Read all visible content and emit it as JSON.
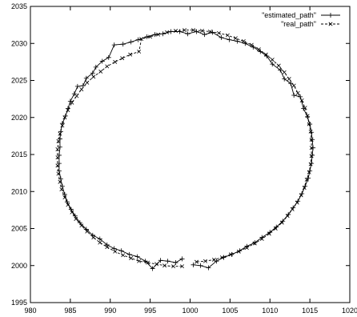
{
  "chart_data": {
    "type": "line",
    "title": "",
    "xlabel": "",
    "ylabel": "",
    "xlim": [
      980,
      1020
    ],
    "ylim": [
      1995,
      2035
    ],
    "grid": false,
    "legend_position": "top-right",
    "x_ticks": [
      980,
      985,
      990,
      995,
      1000,
      1005,
      1010,
      1015,
      1020
    ],
    "y_ticks": [
      1995,
      2000,
      2005,
      2010,
      2015,
      2020,
      2025,
      2030,
      2035
    ],
    "x_tick_labels": [
      "980",
      "985",
      "990",
      "995",
      "1000",
      "1005",
      "1010",
      "1015",
      "1020"
    ],
    "y_tick_labels": [
      "1995",
      "2000",
      "2005",
      "2010",
      "2015",
      "2020",
      "2025",
      "2030",
      "2035"
    ],
    "series": [
      {
        "name": "\"estimated_path\"",
        "style": "solid",
        "marker": "+",
        "color": "#000000",
        "points": [
          [
            999.0,
            2000.9
          ],
          [
            998.2,
            2000.4
          ],
          [
            997.2,
            2000.6
          ],
          [
            996.3,
            2000.7
          ],
          [
            995.3,
            1999.6
          ],
          [
            994.4,
            2000.6
          ],
          [
            993.4,
            2001.2
          ],
          [
            992.4,
            2001.5
          ],
          [
            991.4,
            2002.0
          ],
          [
            990.5,
            2002.3
          ],
          [
            989.6,
            2002.8
          ],
          [
            988.7,
            2003.6
          ],
          [
            987.8,
            2004.1
          ],
          [
            987.0,
            2004.9
          ],
          [
            986.2,
            2005.8
          ],
          [
            985.6,
            2006.7
          ],
          [
            985.1,
            2007.6
          ],
          [
            984.6,
            2008.6
          ],
          [
            984.3,
            2009.6
          ],
          [
            984.0,
            2010.7
          ],
          [
            983.8,
            2011.7
          ],
          [
            983.6,
            2012.8
          ],
          [
            983.6,
            2013.8
          ],
          [
            983.6,
            2014.9
          ],
          [
            983.7,
            2016.0
          ],
          [
            983.7,
            2017.1
          ],
          [
            983.8,
            2018.1
          ],
          [
            984.0,
            2019.2
          ],
          [
            984.4,
            2020.2
          ],
          [
            984.7,
            2021.2
          ],
          [
            985.0,
            2022.2
          ],
          [
            985.5,
            2023.2
          ],
          [
            985.9,
            2024.2
          ],
          [
            986.6,
            2024.3
          ],
          [
            987.0,
            2025.3
          ],
          [
            987.8,
            2026.0
          ],
          [
            988.2,
            2026.8
          ],
          [
            989.0,
            2027.6
          ],
          [
            989.8,
            2028.1
          ],
          [
            990.5,
            2029.8
          ],
          [
            991.6,
            2029.9
          ],
          [
            992.6,
            2030.2
          ],
          [
            993.5,
            2030.5
          ],
          [
            994.6,
            2030.9
          ],
          [
            995.6,
            2031.2
          ],
          [
            996.6,
            2031.3
          ],
          [
            997.6,
            2031.6
          ],
          [
            998.7,
            2031.6
          ],
          [
            999.7,
            2031.3
          ],
          [
            1000.8,
            2031.6
          ],
          [
            1001.8,
            2031.2
          ],
          [
            1002.8,
            2031.5
          ],
          [
            1003.9,
            2030.8
          ],
          [
            1004.9,
            2030.5
          ],
          [
            1005.9,
            2030.3
          ],
          [
            1006.9,
            2030.0
          ],
          [
            1007.9,
            2029.5
          ],
          [
            1008.8,
            2028.9
          ],
          [
            1009.6,
            2028.3
          ],
          [
            1010.3,
            2027.2
          ],
          [
            1011.3,
            2026.4
          ],
          [
            1011.8,
            2025.2
          ],
          [
            1012.6,
            2024.6
          ],
          [
            1013.0,
            2023.0
          ],
          [
            1013.8,
            2022.8
          ],
          [
            1014.2,
            2021.2
          ],
          [
            1014.7,
            2020.1
          ],
          [
            1015.0,
            2019.1
          ],
          [
            1015.2,
            2018.0
          ],
          [
            1015.3,
            2017.0
          ],
          [
            1015.4,
            2015.9
          ],
          [
            1015.3,
            2014.9
          ],
          [
            1015.2,
            2013.8
          ],
          [
            1015.0,
            2012.8
          ],
          [
            1014.8,
            2011.8
          ],
          [
            1014.4,
            2010.7
          ],
          [
            1014.0,
            2009.7
          ],
          [
            1013.5,
            2008.7
          ],
          [
            1012.9,
            2007.8
          ],
          [
            1012.3,
            2006.9
          ],
          [
            1011.6,
            2006.0
          ],
          [
            1010.8,
            2005.2
          ],
          [
            1010.0,
            2004.5
          ],
          [
            1009.0,
            2003.8
          ],
          [
            1008.1,
            2003.1
          ],
          [
            1007.1,
            2002.6
          ],
          [
            1006.2,
            2002.0
          ],
          [
            1005.2,
            2001.5
          ],
          [
            1004.2,
            2001.1
          ],
          [
            1003.3,
            2000.6
          ],
          [
            1002.3,
            1999.7
          ],
          [
            1001.3,
            2000.0
          ],
          [
            1000.4,
            2000.1
          ]
        ]
      },
      {
        "name": "\"real_path\"",
        "style": "dashed",
        "marker": "x",
        "color": "#000000",
        "points": [
          [
            999.0,
            1999.9
          ],
          [
            997.9,
            1999.9
          ],
          [
            996.8,
            2000.0
          ],
          [
            995.8,
            2000.2
          ],
          [
            994.7,
            2000.4
          ],
          [
            993.6,
            2000.6
          ],
          [
            992.6,
            2001.0
          ],
          [
            991.6,
            2001.4
          ],
          [
            990.6,
            2001.9
          ],
          [
            989.6,
            2002.5
          ],
          [
            988.7,
            2003.1
          ],
          [
            987.9,
            2003.8
          ],
          [
            987.1,
            2004.6
          ],
          [
            986.4,
            2005.4
          ],
          [
            985.7,
            2006.3
          ],
          [
            985.2,
            2007.2
          ],
          [
            984.7,
            2008.2
          ],
          [
            984.3,
            2009.2
          ],
          [
            983.9,
            2010.3
          ],
          [
            983.7,
            2011.3
          ],
          [
            983.5,
            2012.4
          ],
          [
            983.4,
            2013.5
          ],
          [
            983.4,
            2014.6
          ],
          [
            983.4,
            2015.7
          ],
          [
            983.5,
            2016.8
          ],
          [
            983.7,
            2017.8
          ],
          [
            984.0,
            2018.9
          ],
          [
            984.3,
            2020.0
          ],
          [
            984.7,
            2021.0
          ],
          [
            985.2,
            2022.0
          ],
          [
            985.8,
            2022.9
          ],
          [
            986.4,
            2023.8
          ],
          [
            987.1,
            2024.7
          ],
          [
            987.9,
            2025.5
          ],
          [
            988.8,
            2026.2
          ],
          [
            989.6,
            2026.9
          ],
          [
            990.6,
            2027.5
          ],
          [
            991.5,
            2028.0
          ],
          [
            992.5,
            2028.5
          ],
          [
            993.6,
            2028.9
          ],
          [
            993.9,
            2030.6
          ],
          [
            995.0,
            2030.9
          ],
          [
            996.0,
            2031.2
          ],
          [
            997.1,
            2031.5
          ],
          [
            998.2,
            2031.7
          ],
          [
            999.3,
            2031.8
          ],
          [
            1000.4,
            2031.8
          ],
          [
            1001.5,
            2031.7
          ],
          [
            1002.5,
            2031.6
          ],
          [
            1003.6,
            2031.4
          ],
          [
            1004.7,
            2031.1
          ],
          [
            1005.7,
            2030.7
          ],
          [
            1006.7,
            2030.3
          ],
          [
            1007.7,
            2029.8
          ],
          [
            1008.6,
            2029.2
          ],
          [
            1009.5,
            2028.5
          ],
          [
            1010.3,
            2027.8
          ],
          [
            1011.1,
            2027.0
          ],
          [
            1011.8,
            2026.1
          ],
          [
            1012.4,
            2025.2
          ],
          [
            1013.0,
            2024.3
          ],
          [
            1013.5,
            2023.3
          ],
          [
            1014.0,
            2022.3
          ],
          [
            1014.4,
            2021.3
          ],
          [
            1014.7,
            2020.2
          ],
          [
            1014.9,
            2019.1
          ],
          [
            1015.1,
            2018.1
          ],
          [
            1015.2,
            2017.0
          ],
          [
            1015.2,
            2015.9
          ],
          [
            1015.2,
            2014.8
          ],
          [
            1015.1,
            2013.7
          ],
          [
            1014.9,
            2012.6
          ],
          [
            1014.6,
            2011.6
          ],
          [
            1014.3,
            2010.5
          ],
          [
            1013.9,
            2009.5
          ],
          [
            1013.4,
            2008.5
          ],
          [
            1012.8,
            2007.6
          ],
          [
            1012.2,
            2006.7
          ],
          [
            1011.5,
            2005.8
          ],
          [
            1010.7,
            2005.0
          ],
          [
            1009.9,
            2004.3
          ],
          [
            1009.0,
            2003.6
          ],
          [
            1008.1,
            2003.0
          ],
          [
            1007.1,
            2002.4
          ],
          [
            1006.1,
            2001.9
          ],
          [
            1005.1,
            2001.5
          ],
          [
            1004.0,
            2001.1
          ],
          [
            1003.0,
            2000.8
          ],
          [
            1001.9,
            2000.6
          ],
          [
            1000.8,
            2000.5
          ]
        ]
      }
    ]
  }
}
